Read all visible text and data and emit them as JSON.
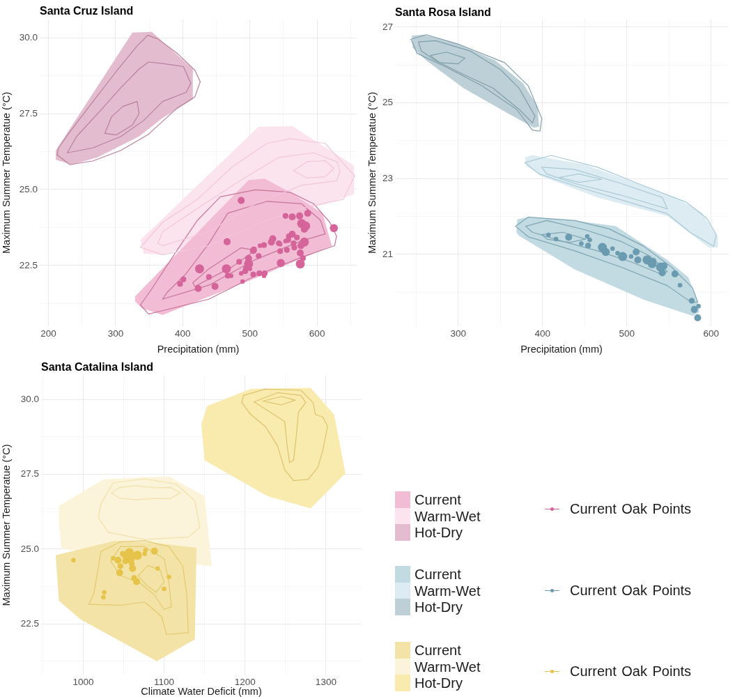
{
  "chart_data": [
    {
      "type": "area",
      "title": "Santa Cruz Island",
      "xlabel": "Precipitation (mm)",
      "ylabel": "Maximum Summer Temperatue (°C)",
      "xlim": [
        187,
        659
      ],
      "ylim": [
        20.5,
        30.6
      ],
      "xticks": [
        200,
        {
          "value": 250,
          "label": null
        },
        300,
        {
          "value": 350,
          "label": null
        },
        400,
        {
          "value": 450,
          "label": null
        },
        500,
        {
          "value": 550,
          "label": null
        },
        600,
        {
          "value": 650,
          "label": null
        }
      ],
      "yticks": [
        {
          "value": 21.25,
          "label": null
        },
        22.5,
        {
          "value": 23.75,
          "label": null
        },
        {
          "value": 25,
          "label": "25.0"
        },
        {
          "value": 26.25,
          "label": null
        },
        27.5,
        {
          "value": 28.75,
          "label": null
        },
        {
          "value": 30,
          "label": "30.0"
        }
      ],
      "grid": true,
      "legend": "bottom right",
      "series": [
        {
          "name": "Current",
          "color": "#f1bcd4",
          "x": [
            329,
            498,
            522,
            560,
            608,
            622,
            508,
            370,
            339,
            329
          ],
          "values": [
            21.48,
            25.31,
            25.36,
            24.91,
            24.22,
            23.15,
            22.08,
            20.87,
            21.09,
            21.32
          ]
        },
        {
          "name": "Warm-Wet",
          "color": "#fce4ee",
          "x": [
            337,
            513,
            563,
            655,
            655,
            370,
            342
          ],
          "values": [
            23.34,
            27.07,
            27.09,
            25.79,
            24.84,
            22.85,
            22.89
          ]
        },
        {
          "name": "Hot-Dry",
          "color": "#e3bdcf",
          "x": [
            211,
            325,
            354,
            415,
            415,
            370,
            335,
            273,
            235,
            211
          ],
          "values": [
            26.29,
            30.17,
            30.19,
            28.97,
            27.97,
            27.36,
            26.75,
            26.06,
            25.82,
            25.98
          ]
        },
        {
          "type": "line",
          "color": "#b97f9b",
          "x": [
            213,
            215,
            232,
            266,
            301,
            332,
            348,
            363,
            391,
            418,
            426
          ],
          "values": [
            26.14,
            26.37,
            26.9,
            27.89,
            28.89,
            29.73,
            30.08,
            29.96,
            29.5,
            28.93,
            28.55
          ]
        },
        {
          "type": "line",
          "color": "#b97f9b",
          "x": [
            213,
            232,
            266,
            308,
            349,
            391,
            418,
            426
          ],
          "values": [
            26.14,
            25.82,
            25.94,
            26.29,
            26.82,
            27.67,
            28.05,
            28.55
          ]
        },
        {
          "type": "line",
          "color": "#b97f9b",
          "x": [
            228,
            242,
            277,
            308,
            335,
            349,
            370,
            401,
            412
          ],
          "values": [
            26.21,
            26.75,
            27.59,
            28.36,
            28.97,
            29.2,
            29.15,
            29.05,
            28.5
          ]
        },
        {
          "type": "line",
          "color": "#b97f9b",
          "x": [
            228,
            266,
            308,
            342,
            370,
            405,
            412
          ],
          "values": [
            26.21,
            26.37,
            26.75,
            27.28,
            27.9,
            28.2,
            28.5
          ]
        },
        {
          "type": "line",
          "color": "#b97f9b",
          "x": [
            284,
            294,
            311,
            332,
            335
          ],
          "values": [
            26.85,
            27.4,
            27.74,
            27.9,
            27.5
          ]
        },
        {
          "type": "line",
          "color": "#b97f9b",
          "x": [
            284,
            301,
            325,
            335
          ],
          "values": [
            26.85,
            26.8,
            27.12,
            27.5
          ]
        },
        {
          "type": "line",
          "color": "#f2c6d9",
          "x": [
            337,
            370,
            422,
            474,
            525,
            560,
            612,
            656
          ],
          "values": [
            23.1,
            23.92,
            24.68,
            25.75,
            26.52,
            26.67,
            26.52,
            25.45
          ]
        },
        {
          "type": "line",
          "color": "#f2c6d9",
          "x": [
            337,
            370,
            439,
            508,
            577,
            639,
            656
          ],
          "values": [
            23.1,
            22.85,
            23.15,
            23.84,
            24.38,
            24.68,
            25.45
          ]
        },
        {
          "type": "line",
          "color": "#f2c6d9",
          "x": [
            363,
            370,
            422,
            491,
            543,
            595,
            630,
            634
          ],
          "values": [
            23.23,
            23.61,
            24.38,
            25.37,
            26.06,
            26.21,
            25.91,
            25.6
          ]
        },
        {
          "type": "line",
          "color": "#f2c6d9",
          "x": [
            363,
            370,
            439,
            508,
            577,
            629,
            634
          ],
          "values": [
            23.23,
            23.15,
            23.61,
            24.53,
            25.14,
            25.29,
            25.6
          ]
        },
        {
          "type": "line",
          "color": "#f2c6d9",
          "x": [
            565,
            585,
            612,
            625
          ],
          "values": [
            25.62,
            25.92,
            25.95,
            25.7
          ]
        },
        {
          "type": "line",
          "color": "#f2c6d9",
          "x": [
            565,
            585,
            612,
            625
          ],
          "values": [
            25.62,
            25.38,
            25.42,
            25.7
          ]
        },
        {
          "type": "line",
          "color": "#c8759c",
          "x": [
            337,
            353,
            387,
            422,
            456,
            508,
            560,
            595,
            619,
            629
          ],
          "values": [
            21.2,
            21.7,
            22.85,
            23.99,
            24.76,
            24.99,
            24.91,
            24.53,
            23.92,
            23.46
          ]
        },
        {
          "type": "line",
          "color": "#c8759c",
          "x": [
            337,
            349,
            370,
            439,
            508,
            577,
            626,
            629
          ],
          "values": [
            21.2,
            20.9,
            21.01,
            21.39,
            22.16,
            22.77,
            23.15,
            23.46
          ]
        },
        {
          "type": "line",
          "color": "#c8759c",
          "x": [
            370,
            377,
            405,
            439,
            467,
            525,
            577,
            605,
            612
          ],
          "values": [
            21.39,
            21.62,
            22.23,
            23.23,
            24.22,
            24.61,
            24.53,
            23.99,
            23.54
          ]
        },
        {
          "type": "line",
          "color": "#c8759c",
          "x": [
            370,
            439,
            508,
            577,
            612
          ],
          "values": [
            21.39,
            21.85,
            22.69,
            23.31,
            23.54
          ]
        },
        {
          "type": "line",
          "color": "#c8759c",
          "x": [
            415,
            439,
            487,
            508
          ],
          "values": [
            21.93,
            22.39,
            23.08,
            23.0
          ]
        },
        {
          "type": "line",
          "color": "#c8759c",
          "x": [
            415,
            418,
            474,
            508
          ],
          "values": [
            21.93,
            21.81,
            22.46,
            23.0
          ]
        },
        {
          "type": "bubble",
          "name": "Current Oak Points",
          "color": "#d4649a",
          "x": [
            487,
            553,
            563,
            574,
            586,
            577,
            583,
            581,
            625,
            563,
            558,
            570,
            534,
            532,
            543,
            557,
            565,
            581,
            576,
            515,
            521,
            506,
            513,
            498,
            498,
            494,
            493,
            484,
            505,
            514,
            522,
            545,
            555,
            566,
            575,
            579,
            575,
            546,
            466,
            465,
            467,
            425,
            439,
            448,
            401,
            396,
            423,
            489,
            500,
            505,
            487,
            472,
            521,
            545,
            553
          ],
          "values": [
            24.64,
            24.13,
            24.1,
            24.13,
            24.22,
            23.88,
            23.8,
            23.69,
            23.73,
            23.53,
            23.46,
            23.42,
            23.38,
            23.27,
            23.23,
            23.34,
            23.23,
            23.27,
            23.15,
            23.15,
            23.17,
            23.03,
            22.81,
            22.73,
            22.55,
            22.39,
            22.31,
            22.62,
            22.2,
            22.24,
            22.24,
            22.97,
            23.01,
            23.09,
            22.91,
            22.74,
            22.55,
            22.58,
            23.28,
            22.39,
            22.16,
            22.39,
            22.12,
            21.81,
            22.04,
            21.89,
            21.74,
            21.97,
            22.39,
            22.99,
            22.24,
            22.16,
            22.16,
            23.2,
            23.3
          ],
          "sizes": [
            0.6,
            0.4,
            0.6,
            0.6,
            0.6,
            1,
            1,
            0.6,
            0.8,
            0.6,
            0.4,
            0.4,
            0.6,
            0.6,
            0.4,
            0.4,
            0.4,
            1,
            0.6,
            0.25,
            0.4,
            0.4,
            0.4,
            0.6,
            1,
            0.4,
            0.4,
            0.4,
            0.4,
            0.4,
            0.4,
            0.4,
            0.4,
            0.4,
            0.6,
            0.4,
            1,
            0.8,
            0.6,
            1,
            0.4,
            1,
            0.4,
            0.6,
            0.4,
            0.4,
            0.6,
            0.25,
            0.25,
            0.6,
            0.25,
            0.25,
            0.25,
            0.25,
            0.25
          ]
        }
      ]
    },
    {
      "type": "area",
      "title": "Santa Rosa Island",
      "xlabel": "Precipitation (mm)",
      "ylabel": "Maximum Summer Temperatue (°C)",
      "xlim": [
        225,
        620
      ],
      "ylim": [
        19.1,
        27.2
      ],
      "xticks": [
        {
          "value": 250,
          "label": null
        },
        300,
        {
          "value": 350,
          "label": null
        },
        400,
        {
          "value": 450,
          "label": null
        },
        500,
        {
          "value": 550,
          "label": null
        },
        600
      ],
      "yticks": [
        {
          "value": 20,
          "label": null
        },
        21,
        {
          "value": 22,
          "label": null
        },
        23,
        {
          "value": 24,
          "label": null
        },
        25,
        {
          "value": 26,
          "label": null
        },
        27
      ],
      "grid": true,
      "legend": "bottom",
      "series": [
        {
          "name": "Current",
          "color": "#c2dae2",
          "x": [
            369,
            370,
            383,
            438,
            487,
            548,
            573,
            584,
            586,
            578,
            520,
            438,
            372
          ],
          "values": [
            21.58,
            21.92,
            21.98,
            21.89,
            21.74,
            20.85,
            20.39,
            19.74,
            19.47,
            19.37,
            19.8,
            20.6,
            21.49
          ]
        },
        {
          "name": "Warm-Wet",
          "color": "#ddecf2",
          "x": [
            379,
            388,
            451,
            520,
            562,
            589,
            608,
            608,
            597,
            548,
            465,
            399,
            381
          ],
          "values": [
            23.56,
            23.62,
            23.36,
            22.81,
            22.44,
            22.1,
            21.47,
            21.17,
            21.18,
            22.01,
            22.5,
            23.06,
            23.33
          ]
        },
        {
          "name": "Hot-Dry",
          "color": "#bdd0d7",
          "x": [
            245,
            259,
            300,
            344,
            377,
            394,
            396,
            390,
            355,
            306,
            262,
            246
          ],
          "values": [
            26.77,
            26.8,
            26.55,
            26.12,
            25.51,
            24.9,
            24.37,
            24.34,
            24.77,
            25.39,
            26.12,
            26.46
          ]
        },
        {
          "type": "line",
          "color": "#7f9eaa",
          "x": [
            244,
            262,
            300,
            355,
            383,
            399
          ],
          "values": [
            26.68,
            26.8,
            26.55,
            26.06,
            25.45,
            24.59
          ]
        },
        {
          "type": "line",
          "color": "#7f9eaa",
          "x": [
            244,
            251,
            286,
            328,
            369,
            388,
            397,
            399
          ],
          "values": [
            26.68,
            26.31,
            25.94,
            25.45,
            24.83,
            24.28,
            24.25,
            24.59
          ]
        },
        {
          "type": "line",
          "color": "#7f9eaa",
          "x": [
            253,
            273,
            314,
            350,
            372,
            391
          ],
          "values": [
            26.61,
            26.64,
            26.37,
            25.88,
            25.39,
            24.65
          ]
        },
        {
          "type": "line",
          "color": "#7f9eaa",
          "x": [
            253,
            256,
            273,
            306,
            341,
            372,
            388,
            391
          ],
          "values": [
            26.61,
            26.37,
            26.12,
            25.75,
            25.39,
            24.83,
            24.47,
            24.65
          ]
        },
        {
          "type": "line",
          "color": "#7f9eaa",
          "x": [
            267,
            286,
            308
          ],
          "values": [
            26.25,
            26.34,
            26.18
          ]
        },
        {
          "type": "line",
          "color": "#7f9eaa",
          "x": [
            267,
            278,
            300,
            308
          ],
          "values": [
            26.25,
            26.06,
            26.03,
            26.18
          ]
        },
        {
          "type": "line",
          "color": "#a9c9d6",
          "x": [
            379,
            410,
            465,
            520,
            570,
            595,
            606
          ],
          "values": [
            23.42,
            23.61,
            23.3,
            22.81,
            22.38,
            21.95,
            21.52
          ]
        },
        {
          "type": "line",
          "color": "#a9c9d6",
          "x": [
            379,
            396,
            438,
            493,
            548,
            575,
            603,
            606
          ],
          "values": [
            23.42,
            23.12,
            22.81,
            22.44,
            22.07,
            21.58,
            21.21,
            21.52
          ]
        },
        {
          "type": "line",
          "color": "#a9c9d6",
          "x": [
            399,
            438,
            493,
            542,
            548
          ],
          "values": [
            23.3,
            23.24,
            22.87,
            22.5,
            22.2
          ]
        },
        {
          "type": "line",
          "color": "#a9c9d6",
          "x": [
            399,
            405,
            438,
            493,
            548
          ],
          "values": [
            23.3,
            23.12,
            22.87,
            22.56,
            22.2
          ]
        },
        {
          "type": "line",
          "color": "#a9c9d6",
          "x": [
            420,
            443,
            470
          ],
          "values": [
            23.03,
            23.12,
            22.98
          ]
        },
        {
          "type": "line",
          "color": "#a9c9d6",
          "x": [
            420,
            443,
            470
          ],
          "values": [
            23.03,
            22.9,
            22.98
          ]
        },
        {
          "type": "line",
          "color": "#7ea5b3",
          "x": [
            368,
            383,
            438,
            479,
            520,
            553,
            578,
            584
          ],
          "values": [
            21.74,
            21.98,
            21.89,
            21.67,
            21.21,
            20.66,
            20.11,
            19.74
          ]
        },
        {
          "type": "line",
          "color": "#7ea5b3",
          "x": [
            368,
            383,
            438,
            493,
            548,
            577,
            584
          ],
          "values": [
            21.74,
            21.46,
            21.09,
            20.66,
            20.17,
            19.72,
            19.74
          ]
        },
        {
          "type": "line",
          "color": "#7ea5b3",
          "x": [
            380,
            405,
            451,
            493,
            526,
            548
          ],
          "values": [
            21.74,
            21.89,
            21.64,
            21.34,
            20.97,
            20.54
          ]
        },
        {
          "type": "line",
          "color": "#7ea5b3",
          "x": [
            380,
            388,
            424,
            465,
            506,
            540,
            548
          ],
          "values": [
            21.74,
            21.58,
            21.34,
            21.09,
            20.79,
            20.48,
            20.54
          ]
        },
        {
          "type": "line",
          "color": "#7ea5b3",
          "x": [
            399,
            424,
            451
          ],
          "values": [
            21.52,
            21.58,
            21.4
          ]
        },
        {
          "type": "line",
          "color": "#7ea5b3",
          "x": [
            399,
            405,
            432,
            451
          ],
          "values": [
            21.52,
            21.4,
            21.31,
            21.4
          ]
        },
        {
          "type": "bubble",
          "name": "Current Oak Points",
          "color": "#6a9bb0",
          "x": [
            475,
            495,
            511,
            513,
            524,
            530,
            531,
            540,
            544,
            542,
            557,
            563,
            577,
            580,
            585,
            584,
            505,
            489,
            456,
            431,
            453,
            446,
            454,
            471,
            483,
            407,
            416
          ],
          "values": [
            21.06,
            20.94,
            21.06,
            20.85,
            20.85,
            20.75,
            20.81,
            20.66,
            20.69,
            20.51,
            20.48,
            20.18,
            19.77,
            19.54,
            19.63,
            19.32,
            20.94,
            21.03,
            21.38,
            21.45,
            21.47,
            21.28,
            21.23,
            21.18,
            21.15,
            21.51,
            21.4
          ],
          "sizes": [
            0.8,
            1,
            0.6,
            0.6,
            1,
            1,
            0.6,
            1,
            0.6,
            0.6,
            0.6,
            0.25,
            0.4,
            0.6,
            0.25,
            0.6,
            0.25,
            0.25,
            0.25,
            0.6,
            0.25,
            0.25,
            0.4,
            1,
            0.25,
            0.25,
            0.25
          ]
        }
      ]
    },
    {
      "type": "area",
      "title": "Santa Catalina Island",
      "xlabel": "Climate Water Deficit (mm)",
      "ylabel": "Maximum Summer Temperatue (°C)",
      "xlim": [
        948,
        1344
      ],
      "ylim": [
        20.8,
        30.8
      ],
      "xticks": [
        {
          "value": 950,
          "label": null
        },
        1000,
        {
          "value": 1050,
          "label": null
        },
        1100,
        {
          "value": 1150,
          "label": null
        },
        1200,
        {
          "value": 1250,
          "label": null
        },
        1300
      ],
      "yticks": [
        {
          "value": 21.25,
          "label": null
        },
        22.5,
        {
          "value": 23.75,
          "label": null
        },
        {
          "value": 25,
          "label": "25.0"
        },
        {
          "value": 26.25,
          "label": null
        },
        27.5,
        {
          "value": 28.75,
          "label": null
        },
        {
          "value": 30,
          "label": "30.0"
        }
      ],
      "grid": true,
      "legend": "right",
      "series": [
        {
          "name": "Current",
          "color": "#f4e3a6",
          "x": [
            966,
            1040,
            1091,
            1140,
            1138,
            1091,
            996,
            970
          ],
          "values": [
            24.79,
            25.28,
            25.2,
            25.04,
            21.98,
            21.25,
            22.66,
            23.27
          ]
        },
        {
          "name": "Warm-Wet",
          "color": "#fcf4da",
          "x": [
            970,
            1025,
            1106,
            1150,
            1159,
            973,
            970
          ],
          "values": [
            26.44,
            27.33,
            27.43,
            26.77,
            24.43,
            25.0,
            25.88
          ]
        },
        {
          "name": "Hot-Dry",
          "color": "#f9eaae",
          "x": [
            1153,
            1207,
            1281,
            1310,
            1324,
            1281,
            1228,
            1150,
            1146
          ],
          "values": [
            29.78,
            30.36,
            30.39,
            29.5,
            27.53,
            26.36,
            26.77,
            27.97,
            29.18
          ]
        },
        {
          "type": "line",
          "color": "#dcc36e",
          "x": [
            1196,
            1198,
            1225,
            1269,
            1284,
            1287,
            1296,
            1302
          ],
          "values": [
            29.9,
            30.14,
            30.35,
            30.31,
            29.9,
            29.5,
            29.42,
            29.1
          ]
        },
        {
          "type": "line",
          "color": "#dcc36e",
          "x": [
            1196,
            1207,
            1225,
            1240,
            1249,
            1260,
            1278,
            1290,
            1296,
            1302
          ],
          "values": [
            29.9,
            29.5,
            29.1,
            28.46,
            27.65,
            27.29,
            27.33,
            27.73,
            28.29,
            29.1
          ]
        },
        {
          "type": "line",
          "color": "#dcc36e",
          "x": [
            1211,
            1240,
            1269,
            1275
          ],
          "values": [
            29.92,
            30.23,
            30.14,
            29.9
          ]
        },
        {
          "type": "line",
          "color": "#dcc36e",
          "x": [
            1211,
            1231,
            1249,
            1252,
            1255,
            1260,
            1263,
            1266,
            1275
          ],
          "values": [
            29.92,
            29.58,
            29.26,
            28.46,
            27.89,
            27.97,
            28.7,
            29.58,
            29.9
          ]
        },
        {
          "type": "line",
          "color": "#dcc36e",
          "x": [
            1222,
            1245,
            1262
          ],
          "values": [
            29.95,
            30.1,
            29.98
          ]
        },
        {
          "type": "line",
          "color": "#dcc36e",
          "x": [
            1222,
            1245,
            1262
          ],
          "values": [
            29.95,
            29.82,
            29.98
          ]
        },
        {
          "type": "line",
          "color": "#f1e0a8",
          "x": [
            1019,
            1022,
            1037,
            1076,
            1115,
            1138,
            1144
          ],
          "values": [
            26.04,
            26.52,
            27.21,
            27.35,
            27.17,
            26.61,
            25.72
          ]
        },
        {
          "type": "line",
          "color": "#f1e0a8",
          "x": [
            1019,
            1031,
            1076,
            1130,
            1144
          ],
          "values": [
            26.04,
            25.56,
            25.32,
            25.4,
            25.72
          ]
        },
        {
          "type": "line",
          "color": "#f1e0a8",
          "x": [
            1035,
            1045,
            1064,
            1088,
            1108,
            1120
          ],
          "values": [
            26.88,
            27.06,
            27.12,
            27.05,
            27.06,
            26.88
          ]
        },
        {
          "type": "line",
          "color": "#f1e0a8",
          "x": [
            1035,
            1045,
            1064,
            1088,
            1108,
            1120
          ],
          "values": [
            26.88,
            26.7,
            26.65,
            26.69,
            26.69,
            26.88
          ]
        },
        {
          "type": "line",
          "color": "#e2c970",
          "x": [
            1007,
            1013,
            1018,
            1022,
            1046,
            1076,
            1106,
            1123,
            1128,
            1130
          ],
          "values": [
            23.15,
            23.5,
            24.27,
            24.92,
            25.24,
            25.28,
            25.08,
            24.43,
            23.47,
            22.2
          ]
        },
        {
          "type": "line",
          "color": "#e2c970",
          "x": [
            1007,
            1046,
            1076,
            1097,
            1103,
            1130
          ],
          "values": [
            23.15,
            23.12,
            23.23,
            22.74,
            22.14,
            22.2
          ]
        },
        {
          "type": "line",
          "color": "#e2c970",
          "x": [
            1034,
            1046,
            1076,
            1100,
            1106,
            1109
          ],
          "values": [
            24.59,
            25.08,
            25.08,
            24.67,
            23.87,
            23.07
          ]
        },
        {
          "type": "line",
          "color": "#e2c970",
          "x": [
            1034,
            1046,
            1070,
            1088,
            1100,
            1109
          ],
          "values": [
            24.59,
            24.11,
            23.87,
            23.47,
            22.98,
            23.07
          ]
        },
        {
          "type": "line",
          "color": "#e2c970",
          "x": [
            1068,
            1080,
            1095,
            1100
          ],
          "values": [
            24.1,
            24.45,
            24.3,
            23.9
          ]
        },
        {
          "type": "line",
          "color": "#e2c970",
          "x": [
            1068,
            1078,
            1090,
            1100
          ],
          "values": [
            24.1,
            23.8,
            23.55,
            23.9
          ]
        },
        {
          "type": "bubble",
          "name": "Current Oak Points",
          "color": "#e6c44a",
          "x": [
            988,
            1025,
            1026,
            1037,
            1043,
            1046,
            1045,
            1052,
            1057,
            1058,
            1060,
            1067,
            1061,
            1063,
            1066,
            1076,
            1088,
            1077,
            1092,
            1100,
            1106,
            1052,
            1049
          ],
          "values": [
            24.63,
            23.39,
            23.55,
            24.69,
            24.63,
            24.43,
            24.21,
            24.59,
            24.88,
            24.67,
            24.51,
            24.79,
            24.35,
            24.03,
            23.91,
            24.84,
            24.93,
            24.96,
            24.35,
            23.67,
            24.07,
            24.75,
            24.84
          ],
          "sizes": [
            0.25,
            0.25,
            0.25,
            0.25,
            0.6,
            0.4,
            0.6,
            0.4,
            1,
            1,
            0.4,
            1,
            0.6,
            0.4,
            0.6,
            0.25,
            0.6,
            0.25,
            0.25,
            0.25,
            0.25,
            0.4,
            0.4
          ]
        }
      ]
    }
  ]
}
